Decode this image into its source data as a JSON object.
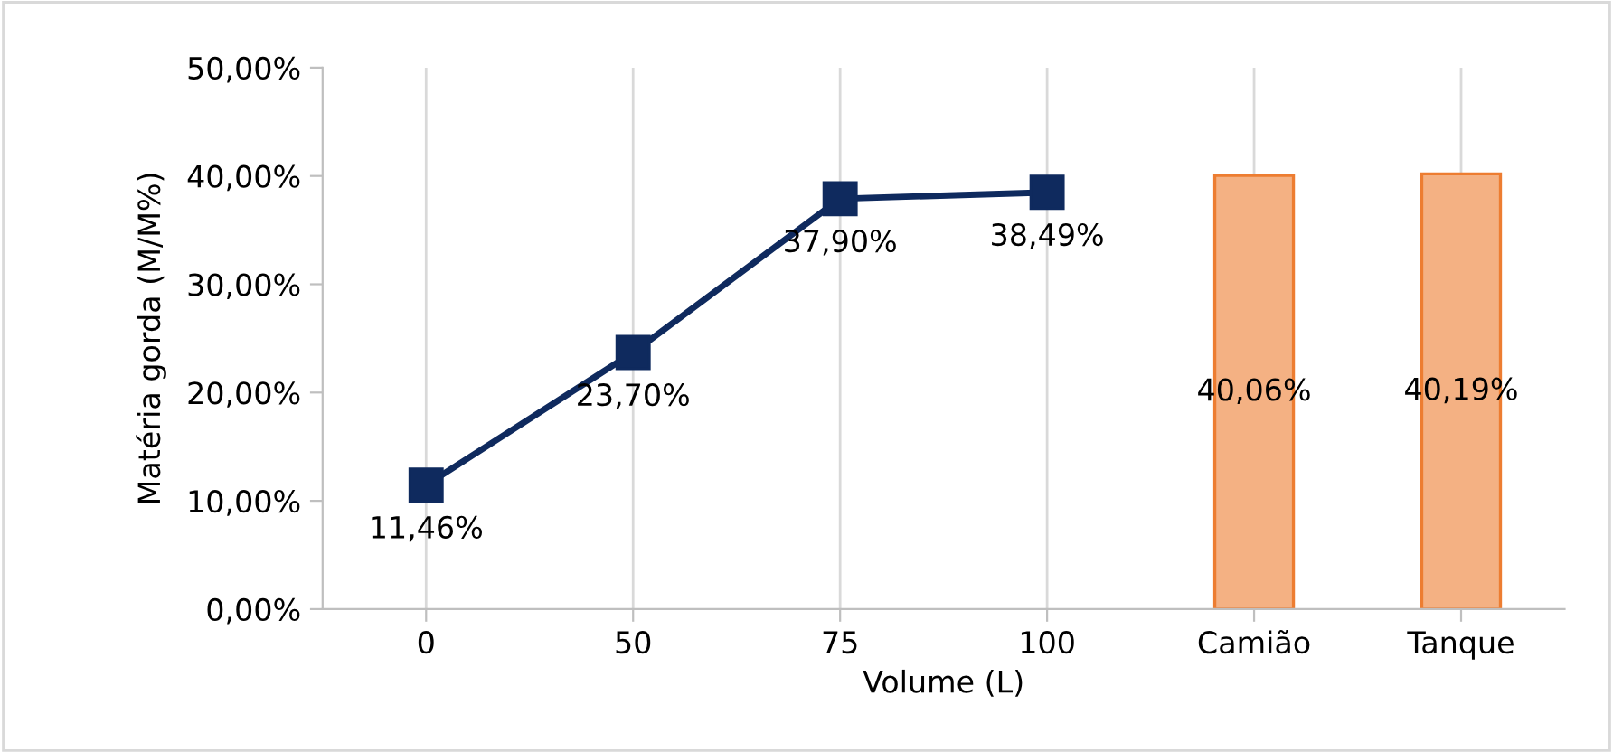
{
  "chart_data": {
    "type": "line",
    "xlabel": "Volume (L)",
    "ylabel": "Matéria gorda (M/M%)",
    "categories": [
      "0",
      "50",
      "75",
      "100",
      "Camião",
      "Tanque"
    ],
    "series": [
      {
        "color": "#0f2a5e",
        "values": [
          11.46,
          23.7,
          37.9,
          38.49,
          null,
          null
        ],
        "value_labels": [
          "11,46%",
          "23,70%",
          "37,90%",
          "38,49%",
          null,
          null
        ]
      },
      {
        "type": "bar",
        "color": "#f4b183",
        "values": [
          null,
          null,
          null,
          null,
          40.06,
          40.19
        ],
        "value_labels": [
          null,
          null,
          null,
          null,
          "40,06%",
          "40,19%"
        ]
      }
    ],
    "ylim": [
      0,
      50
    ],
    "yticks": [
      {
        "value": 0,
        "label": "0,00%"
      },
      {
        "value": 10,
        "label": "10,00%"
      },
      {
        "value": 20,
        "label": "20,00%"
      },
      {
        "value": 30,
        "label": "30,00%"
      },
      {
        "value": 40,
        "label": "40,00%"
      },
      {
        "value": 50,
        "label": "50,00%"
      }
    ],
    "grid": "x",
    "marker": "square",
    "line_style": "solid",
    "legend": false
  }
}
